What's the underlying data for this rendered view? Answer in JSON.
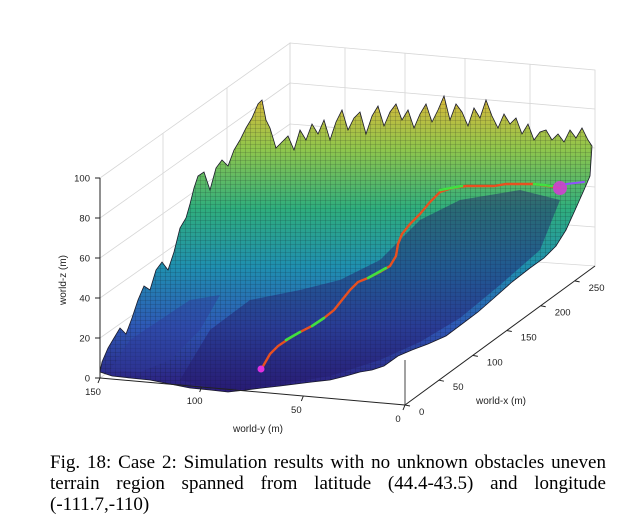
{
  "chart_data": {
    "type": "surface3d",
    "axes": {
      "z": {
        "label": "world-z (m)",
        "ticks": [
          0,
          20,
          40,
          60,
          80,
          100
        ],
        "range": [
          0,
          100
        ]
      },
      "y": {
        "label": "world-y (m)",
        "ticks": [
          150,
          100,
          50,
          0
        ],
        "range": [
          0,
          150
        ]
      },
      "x": {
        "label": "world-x (m)",
        "ticks": [
          0,
          50,
          100,
          150,
          200,
          250
        ],
        "range": [
          0,
          280
        ]
      }
    },
    "grid": true,
    "colormap": [
      "#2b1b7a",
      "#2e58b6",
      "#1f8fb0",
      "#2fae7d",
      "#8fc64c",
      "#d9b83a"
    ],
    "path": {
      "colors": [
        "#e85020",
        "#40e040"
      ],
      "start_marker_color": "#e030e0",
      "goal_marker_color": "#d040d0"
    }
  },
  "caption": "Fig. 18: Case 2: Simulation results with no unknown obstacles uneven terrain region spanned from latitude (44.4-43.5) and longitude (-111.7,-110)"
}
